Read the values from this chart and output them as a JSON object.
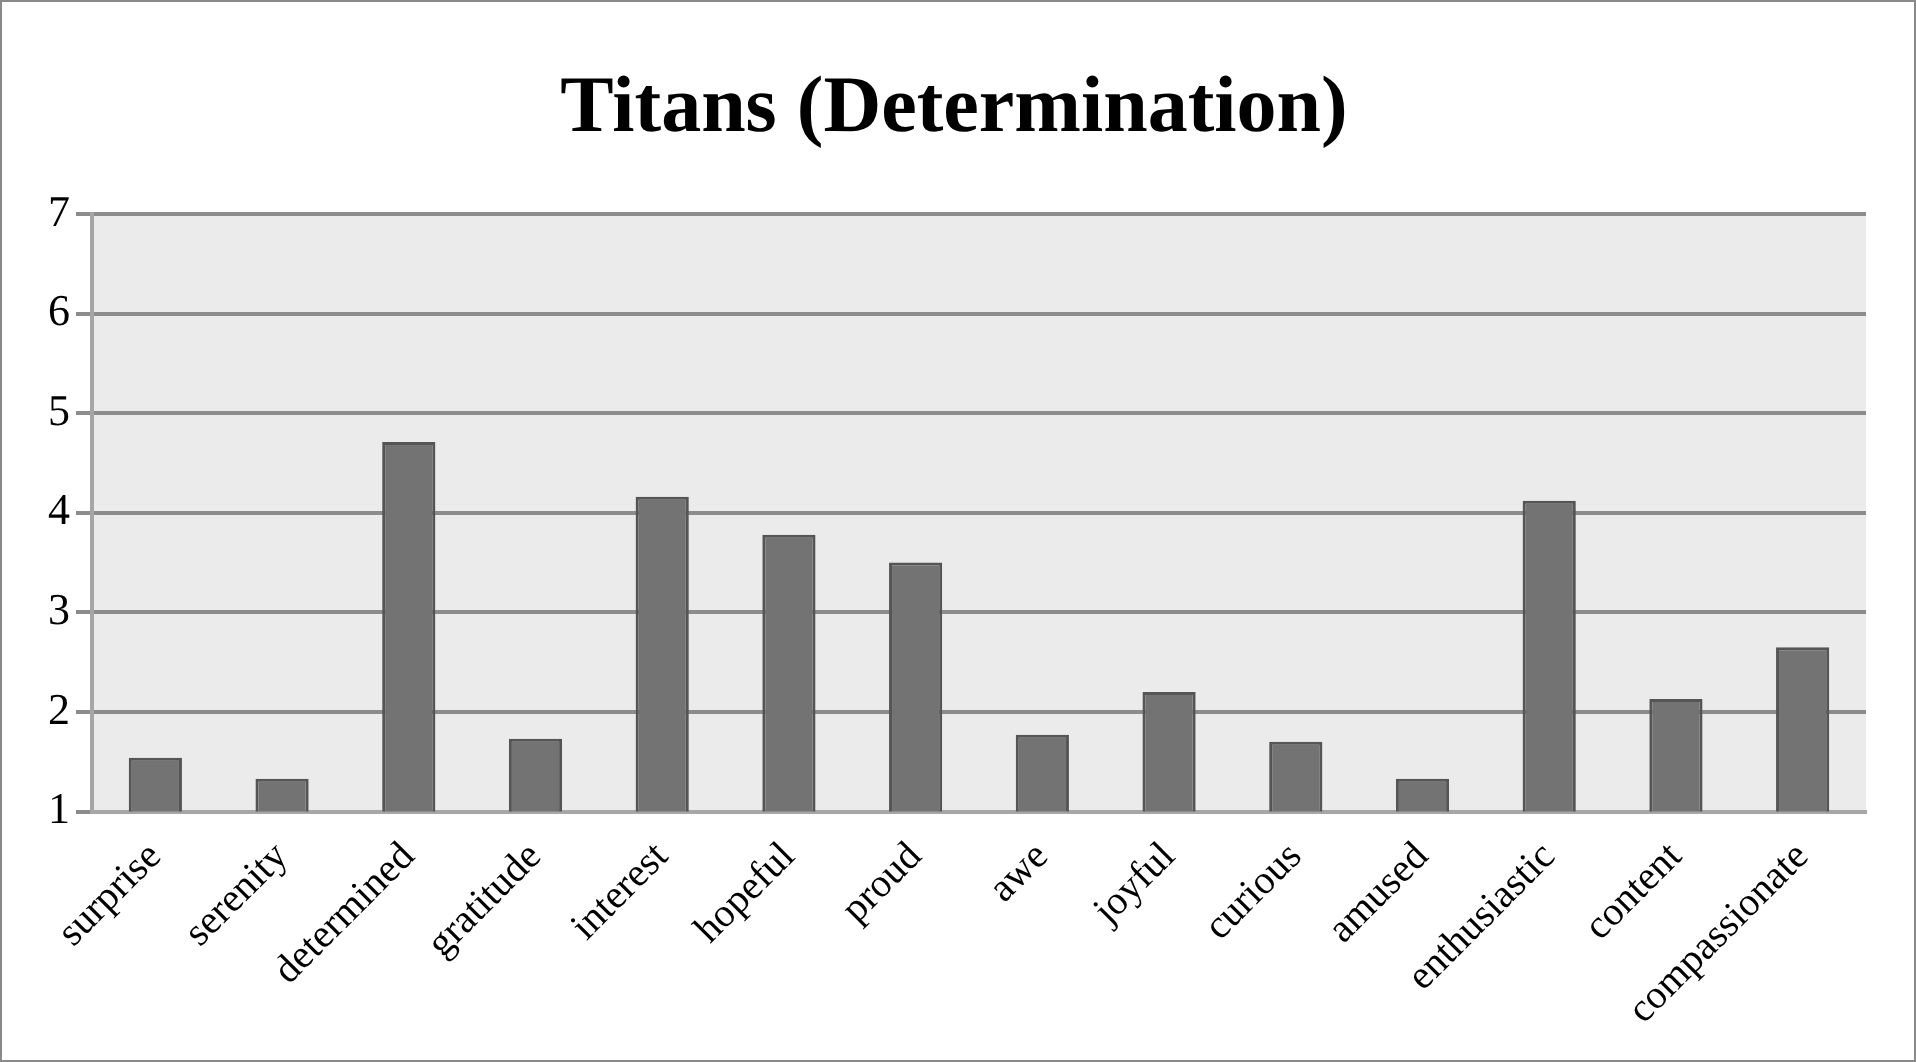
{
  "chart_data": {
    "type": "bar",
    "title": "Titans (Determination)",
    "categories": [
      "surprise",
      "serenity",
      "determined",
      "gratitude",
      "interest",
      "hopeful",
      "proud",
      "awe",
      "joyful",
      "curious",
      "amused",
      "enthusiastic",
      "content",
      "compassionate"
    ],
    "values": [
      1.54,
      1.33,
      4.71,
      1.73,
      4.16,
      3.78,
      3.5,
      1.77,
      2.2,
      1.7,
      1.33,
      4.12,
      2.13,
      2.65
    ],
    "color": "#737373",
    "ylim": [
      1,
      7
    ],
    "yticks": [
      1,
      2,
      3,
      4,
      5,
      6,
      7
    ],
    "grid": "y",
    "legend": false
  }
}
